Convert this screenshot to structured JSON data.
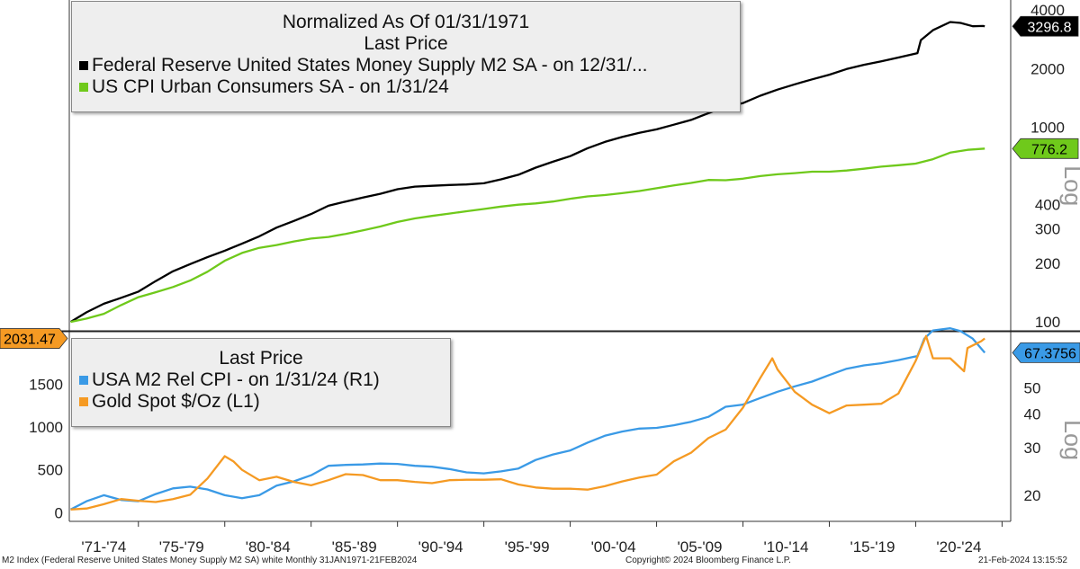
{
  "chart_data": [
    {
      "type": "line",
      "scale": "log",
      "title": "Normalized As Of 01/31/1971",
      "subtitle": "Last Price",
      "ylim": [
        90,
        4500
      ],
      "y_ticks": [
        100,
        200,
        300,
        400,
        1000,
        2000,
        4000
      ],
      "axis_label": "Log",
      "series": [
        {
          "name": "Federal Reserve United States Money Supply M2 SA -  on 12/31/...",
          "color": "#000000",
          "last_value_label": "3296.8",
          "points": [
            [
              1971.08,
              100
            ],
            [
              1972,
              112
            ],
            [
              1973,
              124
            ],
            [
              1974,
              133
            ],
            [
              1975,
              143
            ],
            [
              1976,
              162
            ],
            [
              1977,
              182
            ],
            [
              1978,
              198
            ],
            [
              1979,
              215
            ],
            [
              1980,
              232
            ],
            [
              1981,
              252
            ],
            [
              1982,
              275
            ],
            [
              1983,
              305
            ],
            [
              1984,
              330
            ],
            [
              1985,
              358
            ],
            [
              1986,
              395
            ],
            [
              1987,
              415
            ],
            [
              1988,
              435
            ],
            [
              1989,
              455
            ],
            [
              1990,
              480
            ],
            [
              1991,
              495
            ],
            [
              1992,
              500
            ],
            [
              1993,
              505
            ],
            [
              1994,
              508
            ],
            [
              1995,
              515
            ],
            [
              1996,
              540
            ],
            [
              1997,
              570
            ],
            [
              1998,
              620
            ],
            [
              1999,
              665
            ],
            [
              2000,
              710
            ],
            [
              2001,
              780
            ],
            [
              2002,
              840
            ],
            [
              2003,
              890
            ],
            [
              2004,
              935
            ],
            [
              2005,
              975
            ],
            [
              2006,
              1030
            ],
            [
              2007,
              1090
            ],
            [
              2008,
              1180
            ],
            [
              2009,
              1280
            ],
            [
              2010,
              1330
            ],
            [
              2011,
              1450
            ],
            [
              2012,
              1560
            ],
            [
              2013,
              1660
            ],
            [
              2014,
              1760
            ],
            [
              2015,
              1860
            ],
            [
              2016,
              1990
            ],
            [
              2017,
              2090
            ],
            [
              2018,
              2180
            ],
            [
              2019,
              2280
            ],
            [
              2020.1,
              2400
            ],
            [
              2020.3,
              2800
            ],
            [
              2021,
              3150
            ],
            [
              2022,
              3470
            ],
            [
              2022.6,
              3430
            ],
            [
              2023.3,
              3300
            ],
            [
              2023.9,
              3310
            ],
            [
              2024.0,
              3296.8
            ]
          ]
        },
        {
          "name": "US CPI Urban Consumers SA -  on 1/31/24",
          "color": "#6fc91b",
          "last_value_label": "776.2",
          "points": [
            [
              1971.08,
              100
            ],
            [
              1972,
              104
            ],
            [
              1973,
              110
            ],
            [
              1974,
              122
            ],
            [
              1975,
              134
            ],
            [
              1976,
              142
            ],
            [
              1977,
              151
            ],
            [
              1978,
              163
            ],
            [
              1979,
              181
            ],
            [
              1980,
              206
            ],
            [
              1981,
              226
            ],
            [
              1982,
              240
            ],
            [
              1983,
              248
            ],
            [
              1984,
              259
            ],
            [
              1985,
              268
            ],
            [
              1986,
              273
            ],
            [
              1987,
              283
            ],
            [
              1988,
              295
            ],
            [
              1989,
              309
            ],
            [
              1990,
              326
            ],
            [
              1991,
              340
            ],
            [
              1992,
              350
            ],
            [
              1993,
              360
            ],
            [
              1994,
              370
            ],
            [
              1995,
              380
            ],
            [
              1996,
              391
            ],
            [
              1997,
              400
            ],
            [
              1998,
              406
            ],
            [
              1999,
              415
            ],
            [
              2000,
              429
            ],
            [
              2001,
              441
            ],
            [
              2002,
              448
            ],
            [
              2003,
              458
            ],
            [
              2004,
              470
            ],
            [
              2005,
              486
            ],
            [
              2006,
              502
            ],
            [
              2007,
              517
            ],
            [
              2008,
              536
            ],
            [
              2009,
              534
            ],
            [
              2010,
              544
            ],
            [
              2011,
              561
            ],
            [
              2012,
              573
            ],
            [
              2013,
              581
            ],
            [
              2014,
              591
            ],
            [
              2015,
              591
            ],
            [
              2016,
              599
            ],
            [
              2017,
              612
            ],
            [
              2018,
              627
            ],
            [
              2019,
              638
            ],
            [
              2020,
              650
            ],
            [
              2021,
              685
            ],
            [
              2022,
              740
            ],
            [
              2023,
              765
            ],
            [
              2024.0,
              776.2
            ]
          ]
        }
      ]
    },
    {
      "type": "line",
      "dual_axis": true,
      "subtitle": "Last Price",
      "left_axis": {
        "scale": "linear",
        "ylim": [
          -100,
          2100
        ],
        "ticks": [
          0,
          500,
          1000,
          1500
        ]
      },
      "right_axis": {
        "scale": "log",
        "ylim": [
          16,
          80
        ],
        "ticks": [
          20,
          30,
          40,
          50
        ],
        "label": "Log"
      },
      "series": [
        {
          "name": "USA M2 Rel CPI -  on 1/31/24  (R1)",
          "axis": "R1",
          "color": "#3a9ae6",
          "last_value_label": "67.3756",
          "points": [
            [
              1971.08,
              17.7
            ],
            [
              1972,
              19.0
            ],
            [
              1973,
              20.0
            ],
            [
              1974,
              19.2
            ],
            [
              1975,
              19.0
            ],
            [
              1976,
              20.2
            ],
            [
              1977,
              21.2
            ],
            [
              1978,
              21.5
            ],
            [
              1979,
              21.0
            ],
            [
              1980,
              20.0
            ],
            [
              1981,
              19.5
            ],
            [
              1982,
              20.0
            ],
            [
              1983,
              21.7
            ],
            [
              1984,
              22.5
            ],
            [
              1985,
              23.7
            ],
            [
              1986,
              25.7
            ],
            [
              1987,
              25.9
            ],
            [
              1988,
              26.0
            ],
            [
              1989,
              26.2
            ],
            [
              1990,
              26.1
            ],
            [
              1991,
              25.7
            ],
            [
              1992,
              25.5
            ],
            [
              1993,
              25.0
            ],
            [
              1994,
              24.3
            ],
            [
              1995,
              24.1
            ],
            [
              1996,
              24.5
            ],
            [
              1997,
              25.1
            ],
            [
              1998,
              27.0
            ],
            [
              1999,
              28.3
            ],
            [
              2000,
              29.3
            ],
            [
              2001,
              31.3
            ],
            [
              2002,
              33.2
            ],
            [
              2003,
              34.4
            ],
            [
              2004,
              35.3
            ],
            [
              2005,
              35.5
            ],
            [
              2006,
              36.3
            ],
            [
              2007,
              37.4
            ],
            [
              2008,
              39.0
            ],
            [
              2009,
              42.5
            ],
            [
              2010,
              43.3
            ],
            [
              2011,
              45.8
            ],
            [
              2012,
              48.3
            ],
            [
              2013,
              50.6
            ],
            [
              2014,
              52.7
            ],
            [
              2015,
              55.7
            ],
            [
              2016,
              58.8
            ],
            [
              2017,
              60.5
            ],
            [
              2018,
              61.6
            ],
            [
              2019,
              63.3
            ],
            [
              2020.1,
              65.5
            ],
            [
              2020.5,
              76.0
            ],
            [
              2021,
              81.5
            ],
            [
              2022,
              83.0
            ],
            [
              2022.6,
              81.0
            ],
            [
              2023.3,
              76.0
            ],
            [
              2024.0,
              67.3756
            ]
          ]
        },
        {
          "name": "Gold Spot $/Oz  (L1)",
          "axis": "L1",
          "color": "#f59a23",
          "last_value_label": "2031.47",
          "points": [
            [
              1971.08,
              38
            ],
            [
              1972,
              50
            ],
            [
              1973,
              100
            ],
            [
              1974,
              160
            ],
            [
              1975,
              140
            ],
            [
              1976,
              125
            ],
            [
              1977,
              160
            ],
            [
              1978,
              210
            ],
            [
              1979,
              400
            ],
            [
              1980,
              660
            ],
            [
              1980.5,
              600
            ],
            [
              1981,
              500
            ],
            [
              1982,
              380
            ],
            [
              1983,
              420
            ],
            [
              1984,
              360
            ],
            [
              1985,
              320
            ],
            [
              1986,
              380
            ],
            [
              1987,
              450
            ],
            [
              1988,
              440
            ],
            [
              1989,
              380
            ],
            [
              1990,
              380
            ],
            [
              1991,
              360
            ],
            [
              1992,
              345
            ],
            [
              1993,
              380
            ],
            [
              1994,
              385
            ],
            [
              1995,
              385
            ],
            [
              1996,
              390
            ],
            [
              1997,
              330
            ],
            [
              1998,
              295
            ],
            [
              1999,
              280
            ],
            [
              2000,
              280
            ],
            [
              2001,
              270
            ],
            [
              2002,
              310
            ],
            [
              2003,
              365
            ],
            [
              2004,
              410
            ],
            [
              2005,
              445
            ],
            [
              2006,
              600
            ],
            [
              2007,
              700
            ],
            [
              2008,
              870
            ],
            [
              2009,
              970
            ],
            [
              2010,
              1225
            ],
            [
              2011,
              1570
            ],
            [
              2011.7,
              1800
            ],
            [
              2012,
              1670
            ],
            [
              2013,
              1410
            ],
            [
              2014,
              1260
            ],
            [
              2015,
              1160
            ],
            [
              2016,
              1250
            ],
            [
              2017,
              1260
            ],
            [
              2018,
              1270
            ],
            [
              2019,
              1390
            ],
            [
              2020,
              1770
            ],
            [
              2020.6,
              2060
            ],
            [
              2021,
              1800
            ],
            [
              2022,
              1800
            ],
            [
              2022.8,
              1650
            ],
            [
              2023,
              1920
            ],
            [
              2023.8,
              2000
            ],
            [
              2024.0,
              2031.47
            ]
          ]
        }
      ]
    }
  ],
  "x_axis": {
    "range": [
      1971,
      2025.5
    ],
    "labels": [
      "'71-'74",
      "'75-'79",
      "'80-'84",
      "'85-'89",
      "'90-'94",
      "'95-'99",
      "'00-'04",
      "'05-'09",
      "'10-'14",
      "'15-'19",
      "'20-'24"
    ]
  },
  "footer": {
    "left": "M2 Index (Federal Reserve United States Money Supply M2 SA) white  Monthly 31JAN1971-21FEB2024",
    "center": "Copyright© 2024 Bloomberg Finance L.P.",
    "right": "21-Feb-2024 13:15:52"
  }
}
